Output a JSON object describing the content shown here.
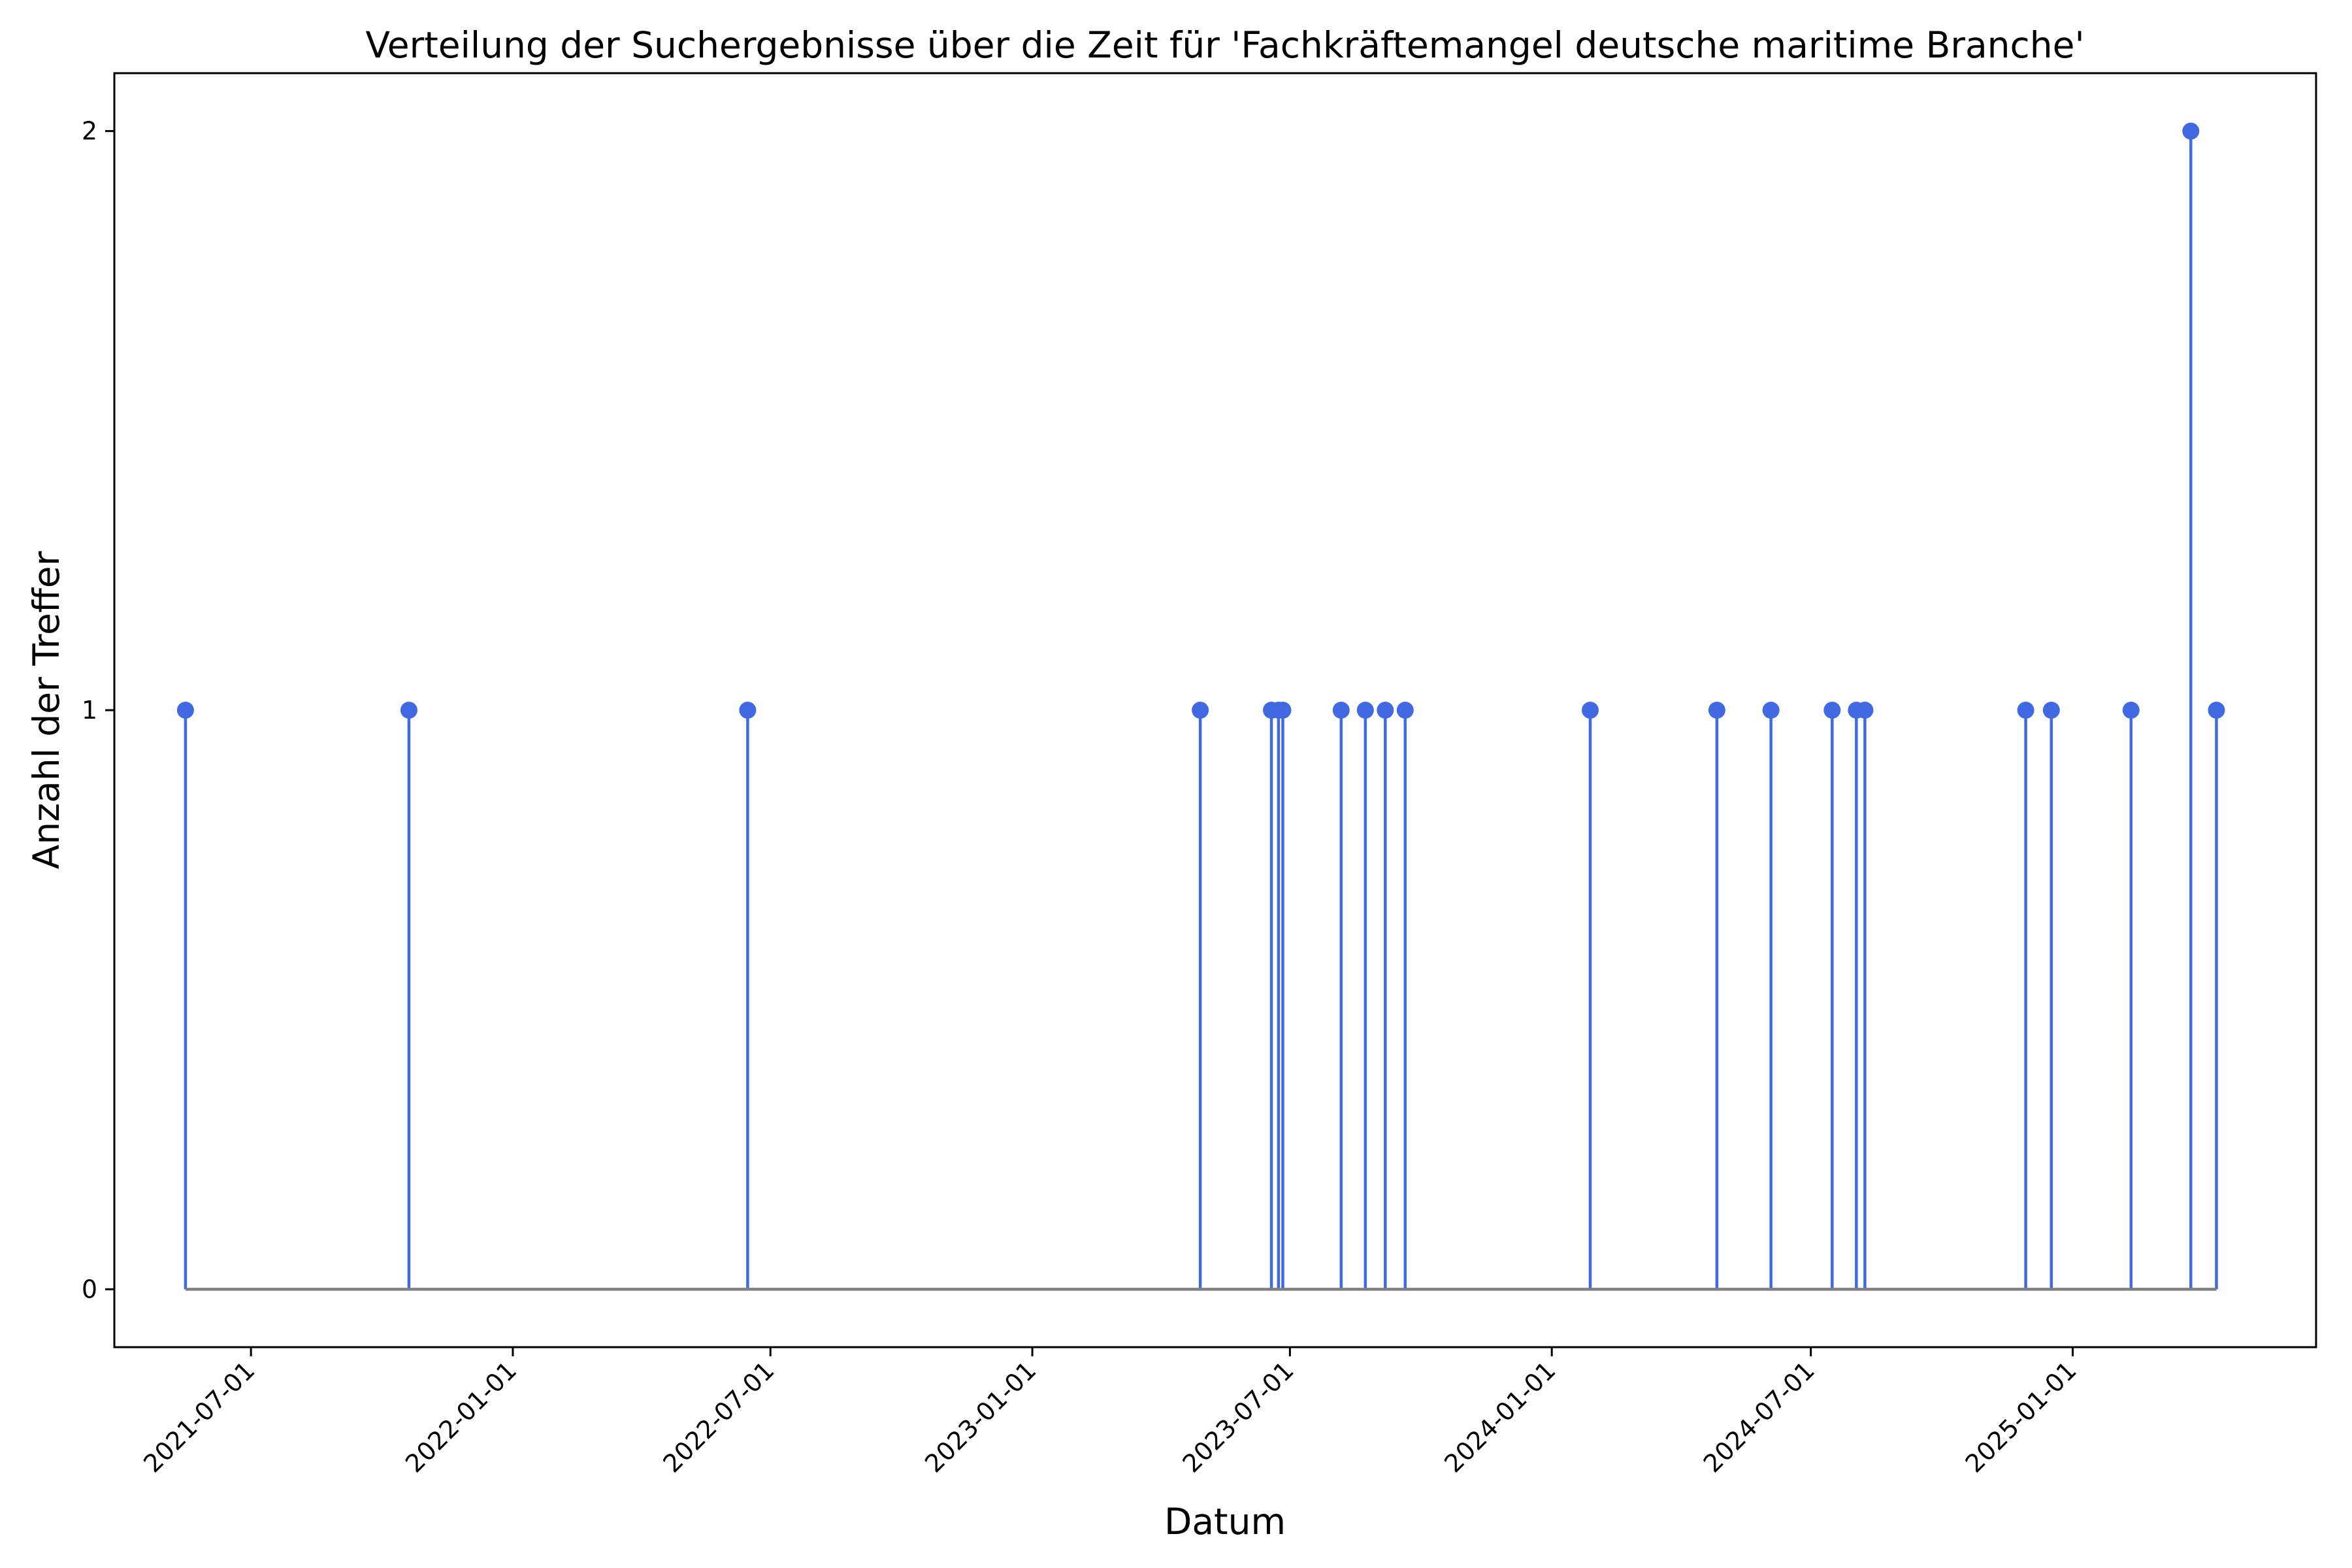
{
  "chart_data": {
    "type": "stem",
    "title": "Verteilung der Suchergebnisse über die Zeit für 'Fachkräftemangel deutsche maritime Branche'",
    "xlabel": "Datum",
    "ylabel": "Anzahl der Treffer",
    "x_axis_type": "date",
    "xlim": [
      "2021-03-27",
      "2025-06-21"
    ],
    "ylim": [
      -0.1,
      2.1
    ],
    "x_ticks": [
      "2021-07-01",
      "2022-01-01",
      "2022-07-01",
      "2023-01-01",
      "2023-07-01",
      "2024-01-01",
      "2024-07-01",
      "2025-01-01"
    ],
    "y_ticks": [
      0,
      1,
      2
    ],
    "grid": false,
    "legend": "none",
    "baseline": 0,
    "colors": {
      "stem": "#4169e1",
      "marker": "#4169e1",
      "baseline": "#808080",
      "axes": "#000000"
    },
    "points": [
      {
        "date": "2021-05-16",
        "value": 1
      },
      {
        "date": "2021-10-20",
        "value": 1
      },
      {
        "date": "2022-06-15",
        "value": 1
      },
      {
        "date": "2023-04-29",
        "value": 1
      },
      {
        "date": "2023-06-18",
        "value": 1
      },
      {
        "date": "2023-06-23",
        "value": 1
      },
      {
        "date": "2023-06-26",
        "value": 1
      },
      {
        "date": "2023-08-06",
        "value": 1
      },
      {
        "date": "2023-08-23",
        "value": 1
      },
      {
        "date": "2023-09-06",
        "value": 1
      },
      {
        "date": "2023-09-20",
        "value": 1
      },
      {
        "date": "2024-01-28",
        "value": 1
      },
      {
        "date": "2024-04-26",
        "value": 1
      },
      {
        "date": "2024-06-03",
        "value": 1
      },
      {
        "date": "2024-07-16",
        "value": 1
      },
      {
        "date": "2024-08-02",
        "value": 1
      },
      {
        "date": "2024-08-08",
        "value": 1
      },
      {
        "date": "2024-11-29",
        "value": 1
      },
      {
        "date": "2024-12-17",
        "value": 1
      },
      {
        "date": "2025-02-11",
        "value": 1
      },
      {
        "date": "2025-03-25",
        "value": 2
      },
      {
        "date": "2025-04-12",
        "value": 1
      }
    ]
  }
}
